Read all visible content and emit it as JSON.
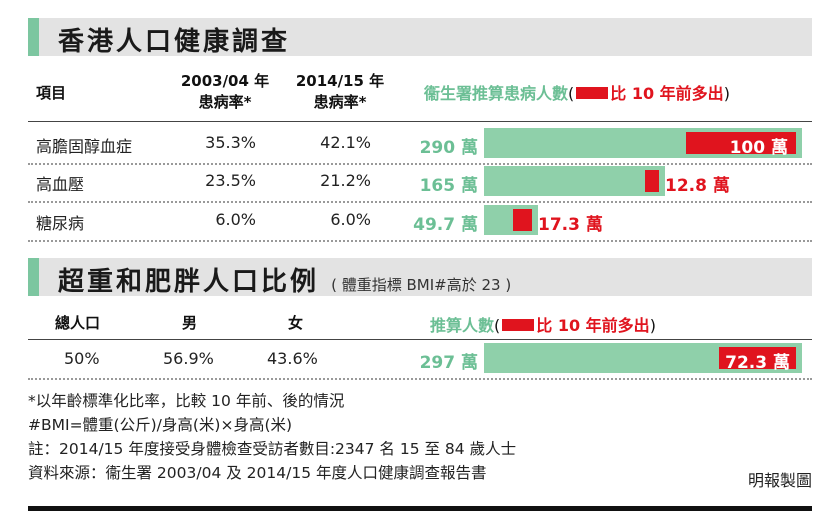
{
  "section1": {
    "title": "香港人口健康調查",
    "headers": {
      "item": "項目",
      "col2003_line1": "2003/04 年",
      "col2003_line2": "患病率*",
      "col2014_line1": "2014/15 年",
      "col2014_line2": "患病率*",
      "estimate": "衞生署推算患病人數",
      "paren_open": "(",
      "legend_text": "比 10 年前多出",
      "paren_close": ")"
    }
  },
  "section2": {
    "title": "超重和肥胖人口比例",
    "subtitle": "( 體重指標 BMI#高於 23 )",
    "headers": {
      "total": "總人口",
      "male": "男",
      "female": "女",
      "estimate": "推算人數",
      "paren_open": "(",
      "legend_text": "比 10 年前多出",
      "paren_close": ")"
    }
  },
  "chart_data": [
    {
      "type": "bar",
      "title": "香港人口健康調查",
      "categories": [
        "高膽固醇血症",
        "高血壓",
        "糖尿病"
      ],
      "prevalence_2003": [
        "35.3%",
        "23.5%",
        "6.0%"
      ],
      "prevalence_2014": [
        "42.1%",
        "21.2%",
        "6.0%"
      ],
      "estimate_labels": [
        "290 萬",
        "165 萬",
        "49.7 萬"
      ],
      "increase_labels": [
        "100 萬",
        "12.8 萬",
        "17.3 萬"
      ],
      "series": [
        {
          "name": "衞生署推算患病人數",
          "values": [
            290,
            165,
            49.7
          ]
        },
        {
          "name": "比 10 年前多出",
          "values": [
            100,
            12.8,
            17.3
          ]
        }
      ]
    },
    {
      "type": "bar",
      "title": "超重和肥胖人口比例",
      "categories": [
        "總人口"
      ],
      "total": "50%",
      "male": "56.9%",
      "female": "43.6%",
      "estimate_labels": [
        "297 萬"
      ],
      "increase_labels": [
        "72.3 萬"
      ],
      "series": [
        {
          "name": "推算人數",
          "values": [
            297
          ]
        },
        {
          "name": "比 10 年前多出",
          "values": [
            72.3
          ]
        }
      ]
    }
  ],
  "notes": [
    "*以年齡標準化比率，比較 10 年前、後的情況",
    "#BMI=體重(公斤)/身高(米)×身高(米)",
    "註：2014/15 年度接受身體檢查受訪者數目:2347 名 15 至 84 歲人士",
    "資料來源：衞生署 2003/04 及 2014/15 年度人口健康調查報告書"
  ],
  "credit": "明報製圖",
  "colors": {
    "accent_green": "#6cbf95",
    "track_green": "#8fd0aa",
    "red": "#e0141e",
    "header_grey": "#e3e3e3"
  }
}
